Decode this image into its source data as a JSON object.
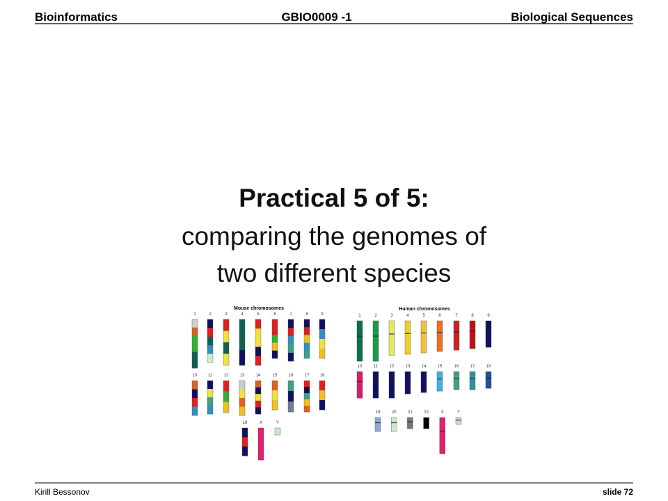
{
  "header": {
    "left": "Bioinformatics",
    "center": "GBIO0009 -1",
    "right": "Biological Sequences"
  },
  "title": {
    "line1": "Practical 5 of 5:",
    "line2": "comparing the genomes of",
    "line3": "two different species"
  },
  "figure": {
    "mouse": {
      "title": "Mouse chromosomes",
      "labels": [
        "1",
        "2",
        "3",
        "4",
        "5",
        "6",
        "7",
        "8",
        "9",
        "10",
        "11",
        "12",
        "13",
        "14",
        "15",
        "16",
        "17",
        "18",
        "19",
        "X",
        "Y"
      ]
    },
    "human": {
      "title": "Human chromosomes",
      "labels": [
        "1",
        "2",
        "3",
        "4",
        "5",
        "6",
        "7",
        "8",
        "9",
        "10",
        "11",
        "12",
        "13",
        "14",
        "15",
        "16",
        "17",
        "18",
        "19",
        "20",
        "21",
        "22",
        "X",
        "Y"
      ]
    }
  },
  "footer": {
    "author": "Kirill Bessonov",
    "slide": "slide 72"
  }
}
